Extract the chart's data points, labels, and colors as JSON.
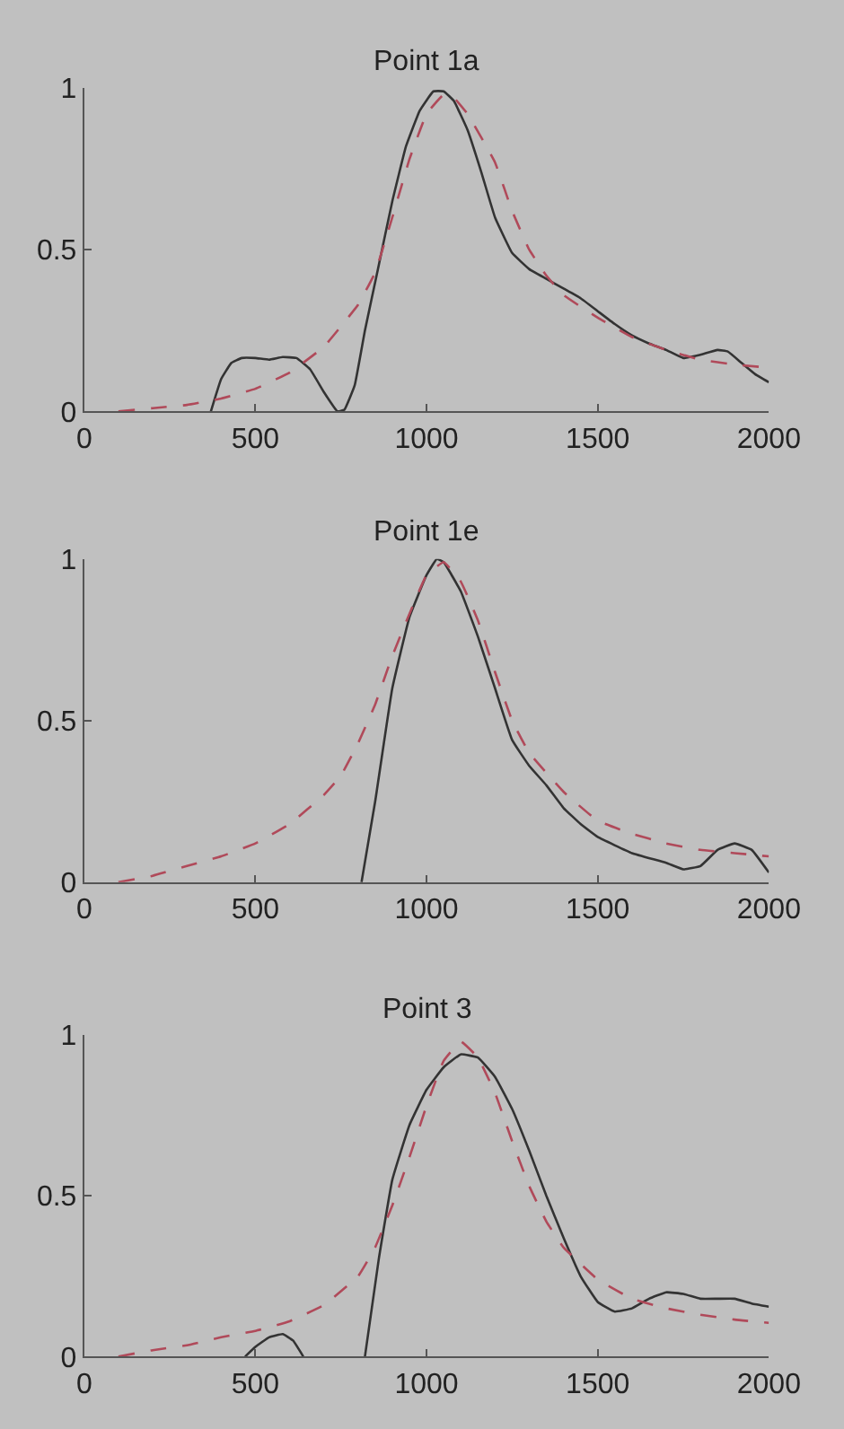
{
  "chart_data": [
    {
      "type": "line",
      "title": "Point 1a",
      "xlim": [
        0,
        2000
      ],
      "xticks": [
        0,
        500,
        1000,
        1500,
        2000
      ],
      "ylim": [
        0,
        1
      ],
      "yticks": [
        0,
        0.5,
        1
      ],
      "grid": false,
      "series": [
        {
          "color": "#333333",
          "line_style": "solid",
          "x": [
            370,
            400,
            430,
            460,
            500,
            540,
            580,
            620,
            660,
            700,
            740,
            760,
            790,
            820,
            860,
            900,
            940,
            980,
            1020,
            1050,
            1080,
            1120,
            1160,
            1200,
            1250,
            1300,
            1350,
            1400,
            1450,
            1500,
            1550,
            1600,
            1650,
            1700,
            1750,
            1800,
            1850,
            1880,
            1920,
            1960,
            2000
          ],
          "values": [
            0,
            0.1,
            0.15,
            0.165,
            0.165,
            0.16,
            0.168,
            0.165,
            0.13,
            0.06,
            0,
            0.005,
            0.08,
            0.25,
            0.45,
            0.65,
            0.82,
            0.93,
            0.99,
            0.99,
            0.96,
            0.87,
            0.74,
            0.6,
            0.49,
            0.44,
            0.41,
            0.38,
            0.35,
            0.31,
            0.27,
            0.235,
            0.21,
            0.19,
            0.165,
            0.175,
            0.19,
            0.185,
            0.15,
            0.115,
            0.09
          ]
        },
        {
          "color": "#b04a5a",
          "line_style": "dashed",
          "x": [
            100,
            200,
            300,
            400,
            500,
            600,
            700,
            800,
            850,
            900,
            950,
            1000,
            1050,
            1080,
            1120,
            1200,
            1250,
            1300,
            1350,
            1400,
            1500,
            1600,
            1700,
            1800,
            1900,
            2000
          ],
          "values": [
            0,
            0.01,
            0.02,
            0.04,
            0.07,
            0.12,
            0.2,
            0.33,
            0.43,
            0.6,
            0.78,
            0.92,
            0.98,
            0.97,
            0.92,
            0.77,
            0.62,
            0.5,
            0.42,
            0.36,
            0.29,
            0.23,
            0.19,
            0.16,
            0.145,
            0.135
          ]
        }
      ]
    },
    {
      "type": "line",
      "title": "Point 1e",
      "xlim": [
        0,
        2000
      ],
      "xticks": [
        0,
        500,
        1000,
        1500,
        2000
      ],
      "ylim": [
        0,
        1
      ],
      "yticks": [
        0,
        0.5,
        1
      ],
      "grid": false,
      "series": [
        {
          "color": "#333333",
          "line_style": "solid",
          "x": [
            810,
            850,
            900,
            950,
            1000,
            1030,
            1050,
            1100,
            1150,
            1200,
            1250,
            1300,
            1350,
            1400,
            1450,
            1500,
            1600,
            1700,
            1750,
            1800,
            1850,
            1900,
            1950,
            2000
          ],
          "values": [
            0,
            0.25,
            0.6,
            0.82,
            0.95,
            1,
            0.99,
            0.9,
            0.76,
            0.6,
            0.44,
            0.36,
            0.3,
            0.23,
            0.18,
            0.14,
            0.09,
            0.06,
            0.04,
            0.05,
            0.1,
            0.12,
            0.1,
            0.03
          ]
        },
        {
          "color": "#b04a5a",
          "line_style": "dashed",
          "x": [
            100,
            200,
            300,
            400,
            500,
            600,
            700,
            750,
            800,
            850,
            900,
            950,
            1000,
            1050,
            1100,
            1150,
            1200,
            1250,
            1300,
            1400,
            1500,
            1600,
            1700,
            1800,
            1900,
            2000
          ],
          "values": [
            0,
            0.02,
            0.05,
            0.08,
            0.12,
            0.18,
            0.27,
            0.33,
            0.43,
            0.55,
            0.7,
            0.83,
            0.95,
            0.99,
            0.93,
            0.81,
            0.65,
            0.5,
            0.4,
            0.28,
            0.19,
            0.15,
            0.12,
            0.1,
            0.09,
            0.08
          ]
        }
      ]
    },
    {
      "type": "line",
      "title": "Point 3",
      "xlim": [
        0,
        2000
      ],
      "xticks": [
        0,
        500,
        1000,
        1500,
        2000
      ],
      "ylim": [
        0,
        1
      ],
      "yticks": [
        0,
        0.5,
        1
      ],
      "grid": false,
      "series": [
        {
          "color": "#333333",
          "line_style": "solid",
          "x": [
            470,
            500,
            540,
            580,
            610,
            640,
            700,
            820,
            860,
            900,
            950,
            1000,
            1050,
            1100,
            1150,
            1200,
            1250,
            1300,
            1350,
            1400,
            1450,
            1500,
            1550,
            1600,
            1650,
            1700,
            1750,
            1800,
            1850,
            1900,
            1950,
            2000
          ],
          "values": [
            0,
            0.03,
            0.06,
            0.07,
            0.05,
            0,
            null,
            0,
            0.3,
            0.55,
            0.72,
            0.83,
            0.9,
            0.94,
            0.93,
            0.87,
            0.77,
            0.64,
            0.5,
            0.37,
            0.25,
            0.17,
            0.14,
            0.15,
            0.18,
            0.2,
            0.195,
            0.18,
            0.18,
            0.18,
            0.165,
            0.155
          ]
        },
        {
          "color": "#b04a5a",
          "line_style": "dashed",
          "x": [
            100,
            200,
            300,
            400,
            500,
            600,
            700,
            800,
            850,
            900,
            950,
            1000,
            1050,
            1100,
            1150,
            1200,
            1250,
            1300,
            1350,
            1400,
            1500,
            1600,
            1700,
            1800,
            1900,
            2000
          ],
          "values": [
            0,
            0.02,
            0.035,
            0.06,
            0.08,
            0.11,
            0.16,
            0.25,
            0.34,
            0.47,
            0.62,
            0.78,
            0.92,
            0.98,
            0.93,
            0.82,
            0.67,
            0.53,
            0.42,
            0.34,
            0.24,
            0.18,
            0.15,
            0.13,
            0.115,
            0.105
          ]
        }
      ]
    }
  ]
}
